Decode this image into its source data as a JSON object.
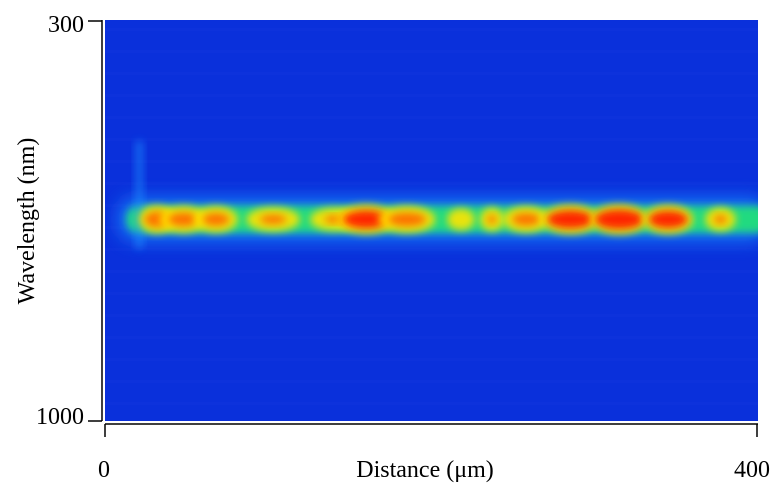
{
  "chart_data": {
    "type": "heatmap",
    "xlabel": "Distance (μm)",
    "ylabel": "Wavelength (nm)",
    "xlim": [
      0,
      400
    ],
    "ylim": [
      300,
      1000
    ],
    "x_ticks": [
      "0",
      "400"
    ],
    "y_ticks": [
      "300",
      "1000"
    ],
    "colormap": [
      "#0a2fdb",
      "#1e90ff",
      "#22e07a",
      "#ffe400",
      "#ff1a00"
    ],
    "background_color": "#0a30db",
    "band": {
      "center_wavelength": 652,
      "half_width_nm": 30,
      "x_range": [
        0,
        400
      ]
    },
    "vertical_streak": {
      "x": 21,
      "wavelength_range": [
        600,
        790
      ]
    },
    "hotspots": [
      {
        "x": 32,
        "w": 18,
        "level": 0.85
      },
      {
        "x": 48,
        "w": 24,
        "level": 0.78
      },
      {
        "x": 68,
        "w": 22,
        "level": 0.74
      },
      {
        "x": 103,
        "w": 28,
        "level": 0.58
      },
      {
        "x": 141,
        "w": 26,
        "level": 0.5
      },
      {
        "x": 160,
        "w": 30,
        "level": 0.95
      },
      {
        "x": 185,
        "w": 30,
        "level": 0.78
      },
      {
        "x": 218,
        "w": 12,
        "level": 0.42
      },
      {
        "x": 237,
        "w": 10,
        "level": 0.55
      },
      {
        "x": 258,
        "w": 24,
        "level": 0.72
      },
      {
        "x": 285,
        "w": 30,
        "level": 0.95
      },
      {
        "x": 315,
        "w": 30,
        "level": 1.0
      },
      {
        "x": 345,
        "w": 26,
        "level": 0.92
      },
      {
        "x": 377,
        "w": 14,
        "level": 0.55
      }
    ]
  }
}
